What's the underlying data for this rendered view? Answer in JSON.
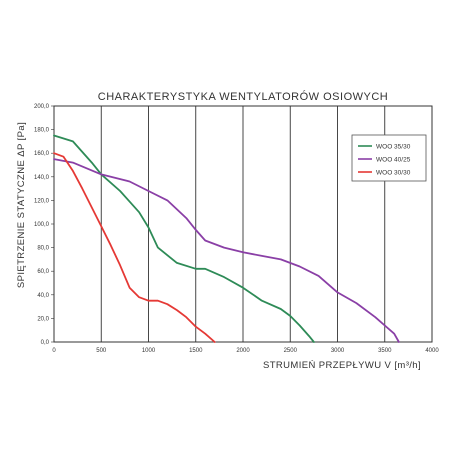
{
  "chart_data": {
    "type": "line",
    "title": "CHARAKTERYSTYKA WENTYLATORÓW OSIOWYCH",
    "xlabel": "STRUMIEŃ PRZEPŁYWU V [m³/h]",
    "ylabel": "SPIĘTRZENIE STATYCZNE ΔP [Pa]",
    "xlim": [
      0,
      4000
    ],
    "ylim": [
      0,
      200
    ],
    "x_ticks": [
      "0",
      "500",
      "1000",
      "1500",
      "2000",
      "2500",
      "3000",
      "3500",
      "4000"
    ],
    "y_ticks": [
      "0,0",
      "20,0",
      "40,0",
      "60,0",
      "80,0",
      "100,0",
      "120,0",
      "140,0",
      "160,0",
      "180,0",
      "200,0"
    ],
    "x_tick_values": [
      0,
      500,
      1000,
      1500,
      2000,
      2500,
      3000,
      3500,
      4000
    ],
    "y_tick_values": [
      0,
      20,
      40,
      60,
      80,
      100,
      120,
      140,
      160,
      180,
      200
    ],
    "grid": true,
    "legend_position": "top-right",
    "series": [
      {
        "name": "WOO 35/30",
        "color": "#2e8b57",
        "x": [
          0,
          200,
          400,
          500,
          700,
          900,
          1000,
          1100,
          1300,
          1500,
          1600,
          1800,
          2000,
          2200,
          2400,
          2500,
          2600,
          2700,
          2750
        ],
        "y": [
          175,
          170,
          152,
          142,
          128,
          110,
          97,
          80,
          67,
          62,
          62,
          55,
          46,
          35,
          28,
          22,
          14,
          5,
          0
        ]
      },
      {
        "name": "WOO 40/25",
        "color": "#8a3fa6",
        "x": [
          0,
          200,
          500,
          800,
          1000,
          1200,
          1400,
          1500,
          1600,
          1800,
          2000,
          2200,
          2400,
          2600,
          2800,
          3000,
          3200,
          3400,
          3500,
          3600,
          3650
        ],
        "y": [
          155,
          152,
          142,
          136,
          128,
          120,
          105,
          95,
          86,
          80,
          76,
          73,
          70,
          64,
          56,
          42,
          33,
          21,
          14,
          7,
          0
        ]
      },
      {
        "name": "WOO 30/30",
        "color": "#e53935",
        "x": [
          0,
          100,
          200,
          300,
          400,
          500,
          600,
          700,
          800,
          900,
          1000,
          1100,
          1200,
          1300,
          1400,
          1500,
          1600,
          1700
        ],
        "y": [
          160,
          157,
          145,
          130,
          114,
          98,
          82,
          65,
          46,
          38,
          35,
          35,
          32,
          27,
          21,
          13,
          7,
          0
        ]
      }
    ]
  }
}
